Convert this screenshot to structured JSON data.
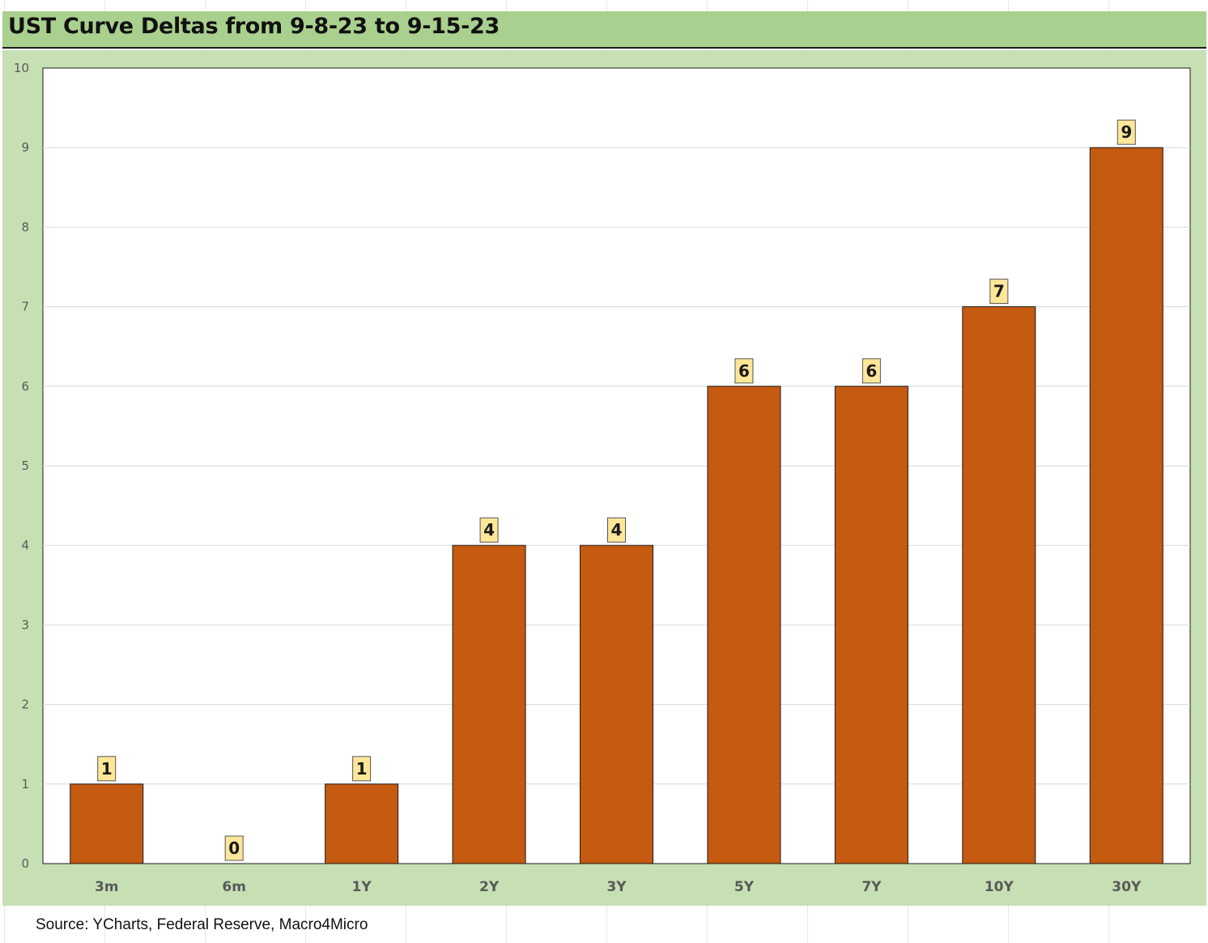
{
  "title": "UST Curve Deltas from 9-8-23 to 9-15-23",
  "source": "Source: YCharts, Federal Reserve, Macro4Micro",
  "colors": {
    "bar": "#c55a11",
    "title_bg": "#a9d08e",
    "chart_bg": "#c6e0b4",
    "plot_bg": "#ffffff",
    "data_label_bg": "#ffe699"
  },
  "chart_data": {
    "type": "bar",
    "title": "UST Curve Deltas from 9-8-23 to 9-15-23",
    "categories": [
      "3m",
      "6m",
      "1Y",
      "2Y",
      "3Y",
      "5Y",
      "7Y",
      "10Y",
      "30Y"
    ],
    "values": [
      1,
      0,
      1,
      4,
      4,
      6,
      6,
      7,
      9
    ],
    "xlabel": "",
    "ylabel": "",
    "ylim": [
      0,
      10
    ],
    "yticks": [
      0,
      1,
      2,
      3,
      4,
      5,
      6,
      7,
      8,
      9,
      10
    ],
    "grid": true,
    "legend": "none",
    "data_labels": true
  }
}
